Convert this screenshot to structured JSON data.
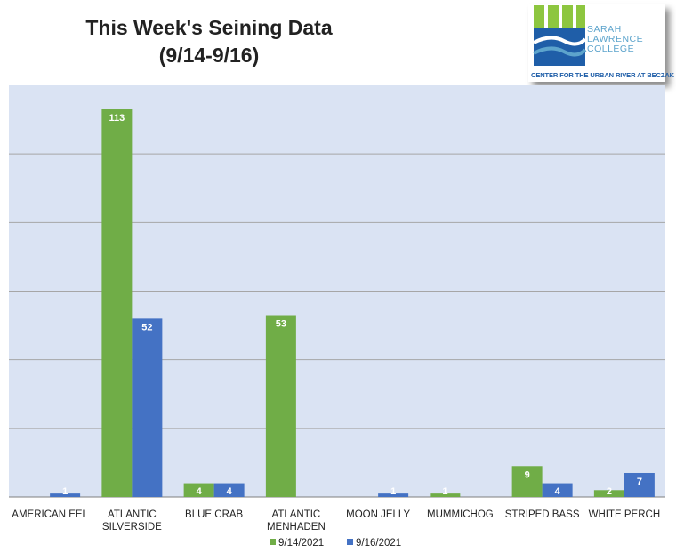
{
  "title_line1": "This Week's Seining Data",
  "title_line2": "(9/14-9/16)",
  "logo": {
    "lines": [
      "SARAH",
      "LAWRENCE",
      "COLLEGE"
    ],
    "tagline": "CENTER FOR THE URBAN RIVER AT BECZAK",
    "colors": {
      "green": "#8dc63f",
      "blue": "#1f5ea8",
      "light_blue": "#5da4cc"
    }
  },
  "chart_data": {
    "type": "bar",
    "title": "This Week's Seining Data (9/14-9/16)",
    "categories": [
      [
        "AMERICAN EEL"
      ],
      [
        "ATLANTIC",
        "SILVERSIDE"
      ],
      [
        "BLUE CRAB"
      ],
      [
        "ATLANTIC",
        "MENHADEN"
      ],
      [
        "MOON JELLY"
      ],
      [
        "MUMMICHOG"
      ],
      [
        "STRIPED BASS"
      ],
      [
        "WHITE PERCH"
      ]
    ],
    "series": [
      {
        "name": "9/14/2021",
        "color": "#70ad47",
        "values": [
          0,
          113,
          4,
          53,
          0,
          1,
          9,
          2
        ]
      },
      {
        "name": "9/16/2021",
        "color": "#4472c4",
        "values": [
          1,
          52,
          4,
          0,
          1,
          0,
          4,
          7
        ]
      }
    ],
    "ylim": [
      0,
      120
    ],
    "gridlines": [
      20,
      40,
      60,
      80,
      100
    ],
    "grid": true,
    "plot_background": "#dae3f3",
    "legend_position": "bottom"
  }
}
